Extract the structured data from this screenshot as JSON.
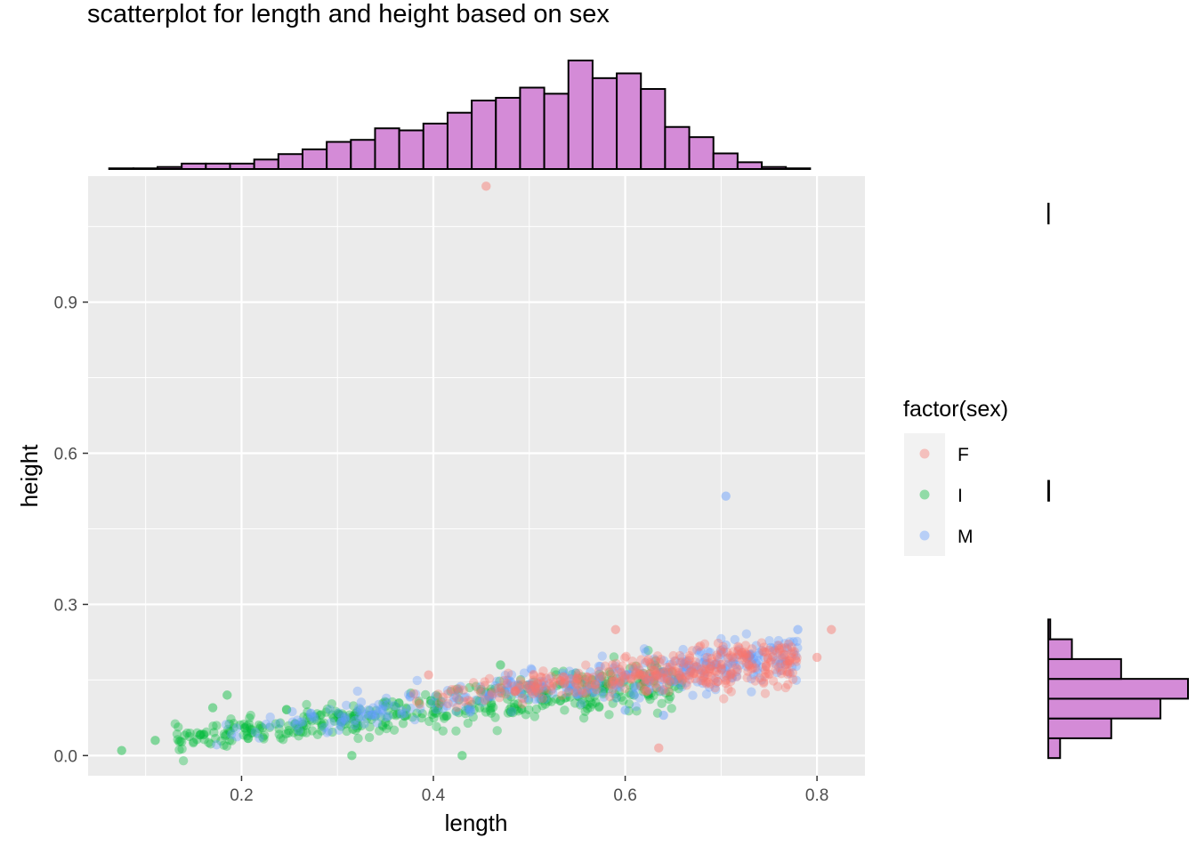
{
  "chart_data": {
    "type": "scatter",
    "title": "scatterplot for length and height based on sex",
    "xlabel": "length",
    "ylabel": "height",
    "xlim": [
      0.04,
      0.85
    ],
    "ylim": [
      -0.04,
      1.15
    ],
    "x_ticks": [
      0.2,
      0.4,
      0.6,
      0.8
    ],
    "x_tick_labels": [
      "0.2",
      "0.4",
      "0.6",
      "0.8"
    ],
    "y_ticks": [
      0.0,
      0.3,
      0.6,
      0.9
    ],
    "y_tick_labels": [
      "0.0",
      "0.3",
      "0.6",
      "0.9"
    ],
    "grid": true,
    "legend": {
      "title": "factor(sex)",
      "position": "right",
      "entries": [
        {
          "label": "F",
          "color": "#F8766D"
        },
        {
          "label": "I",
          "color": "#00BA38"
        },
        {
          "label": "M",
          "color": "#619CFF"
        }
      ]
    },
    "series": [
      {
        "name": "F",
        "color": "#F8766D",
        "note_points": [
          [
            0.455,
            1.13
          ],
          [
            0.815,
            0.25
          ],
          [
            0.635,
            0.015
          ],
          [
            0.395,
            0.16
          ],
          [
            0.8,
            0.195
          ],
          [
            0.59,
            0.25
          ]
        ],
        "cluster": {
          "x_range": [
            0.37,
            0.78
          ],
          "y_mean_at_x_min": 0.11,
          "y_mean_at_x_max": 0.19,
          "count": 380
        }
      },
      {
        "name": "I",
        "color": "#00BA38",
        "note_points": [
          [
            0.075,
            0.01
          ],
          [
            0.11,
            0.03
          ],
          [
            0.185,
            0.12
          ],
          [
            0.17,
            0.095
          ],
          [
            0.315,
            0.0
          ],
          [
            0.43,
            0.0
          ],
          [
            0.47,
            0.18
          ]
        ],
        "cluster": {
          "x_range": [
            0.13,
            0.66
          ],
          "y_mean_at_x_min": 0.03,
          "y_mean_at_x_max": 0.15,
          "count": 450
        }
      },
      {
        "name": "M",
        "color": "#619CFF",
        "note_points": [
          [
            0.705,
            0.515
          ],
          [
            0.78,
            0.25
          ],
          [
            0.64,
            0.08
          ],
          [
            0.6,
            0.09
          ]
        ],
        "cluster": {
          "x_range": [
            0.16,
            0.78
          ],
          "y_mean_at_x_min": 0.04,
          "y_mean_at_x_max": 0.2,
          "count": 400
        }
      }
    ],
    "marginal_x_histogram": {
      "fill": "#D48BD7",
      "bins_start": 0.062,
      "bin_width": 0.0252,
      "counts": [
        1,
        1,
        3,
        8,
        8,
        8,
        14,
        22,
        29,
        40,
        43,
        60,
        57,
        67,
        83,
        101,
        105,
        120,
        111,
        160,
        134,
        141,
        118,
        62,
        47,
        23,
        10,
        3,
        1
      ]
    },
    "marginal_y_histogram": {
      "fill": "#D48BD7",
      "bins_start": -0.005,
      "bin_width": 0.0393,
      "counts": [
        30,
        160,
        285,
        355,
        185,
        60,
        5,
        0,
        0,
        0,
        0,
        0,
        0,
        2,
        0,
        0,
        0,
        0,
        0,
        0,
        0,
        0,
        0,
        0,
        0,
        0,
        0,
        1
      ]
    }
  }
}
